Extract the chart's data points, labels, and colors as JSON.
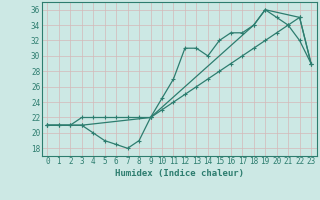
{
  "xlabel": "Humidex (Indice chaleur)",
  "background_color": "#cce8e4",
  "grid_color": "#b0d8d2",
  "line_color": "#2d7d6f",
  "xlim": [
    -0.5,
    23.5
  ],
  "ylim": [
    17,
    37
  ],
  "xticks": [
    0,
    1,
    2,
    3,
    4,
    5,
    6,
    7,
    8,
    9,
    10,
    11,
    12,
    13,
    14,
    15,
    16,
    17,
    18,
    19,
    20,
    21,
    22,
    23
  ],
  "yticks": [
    18,
    20,
    22,
    24,
    26,
    28,
    30,
    32,
    34,
    36
  ],
  "line1_x": [
    0,
    1,
    2,
    3,
    4,
    5,
    6,
    7,
    8,
    9,
    10,
    11,
    12,
    13,
    14,
    15,
    16,
    17,
    18,
    19,
    20,
    21,
    22,
    23
  ],
  "line1_y": [
    21,
    21,
    21,
    21,
    20,
    19,
    18.5,
    18,
    19,
    22,
    24.5,
    27,
    31,
    31,
    30,
    32,
    33,
    33,
    34,
    36,
    35,
    34,
    32,
    29
  ],
  "line2_x": [
    0,
    1,
    2,
    3,
    4,
    5,
    6,
    7,
    8,
    9,
    10,
    11,
    12,
    13,
    14,
    15,
    16,
    17,
    18,
    19,
    20,
    21,
    22,
    23
  ],
  "line2_y": [
    21,
    21,
    21,
    22,
    22,
    22,
    22,
    22,
    22,
    22,
    23,
    24,
    25,
    26,
    27,
    28,
    29,
    30,
    31,
    32,
    33,
    34,
    35,
    29
  ],
  "line3_x": [
    0,
    3,
    9,
    18,
    19,
    22,
    23
  ],
  "line3_y": [
    21,
    21,
    22,
    34,
    36,
    35,
    29
  ]
}
